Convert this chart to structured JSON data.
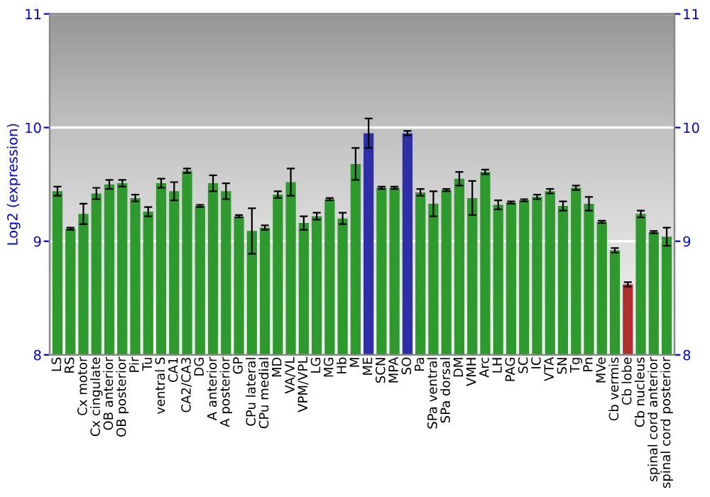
{
  "chart_data": {
    "type": "bar",
    "ylabel": "Log2 (expression)",
    "categories": [
      "LS",
      "RS",
      "Cx motor",
      "Cx cingulate",
      "OB anterior",
      "OB posterior",
      "Pir",
      "Tu",
      "ventral S",
      "CA1",
      "CA2/CA3",
      "DG",
      "A anterior",
      "A posterior",
      "GP",
      "CPu lateral",
      "CPu medial",
      "MD",
      "VA/VL",
      "VPM/VPL",
      "LG",
      "MG",
      "Hb",
      "M",
      "ME",
      "SCN",
      "MPA",
      "SO",
      "Pa",
      "SPa ventral",
      "SPa dorsal",
      "DM",
      "VMH",
      "Arc",
      "LH",
      "PAG",
      "SC",
      "IC",
      "VTA",
      "SN",
      "Tg",
      "Pn",
      "MVe",
      "Cb vermis",
      "Cb lobe",
      "Cb nucleus",
      "spinal cord anterior",
      "spinal cord posterior"
    ],
    "values": [
      9.44,
      9.11,
      9.24,
      9.42,
      9.5,
      9.51,
      9.38,
      9.26,
      9.51,
      9.44,
      9.62,
      9.31,
      9.51,
      9.44,
      9.22,
      9.09,
      9.12,
      9.41,
      9.52,
      9.16,
      9.22,
      9.37,
      9.2,
      9.68,
      9.95,
      9.47,
      9.47,
      9.95,
      9.43,
      9.33,
      9.45,
      9.55,
      9.38,
      9.61,
      9.32,
      9.34,
      9.36,
      9.39,
      9.44,
      9.31,
      9.47,
      9.33,
      9.17,
      8.92,
      8.62,
      9.24,
      9.08,
      9.04
    ],
    "errors": [
      0.04,
      0.01,
      0.09,
      0.05,
      0.04,
      0.03,
      0.03,
      0.04,
      0.04,
      0.08,
      0.02,
      0.01,
      0.07,
      0.07,
      0.01,
      0.2,
      0.02,
      0.03,
      0.12,
      0.06,
      0.03,
      0.01,
      0.05,
      0.14,
      0.13,
      0.01,
      0.01,
      0.02,
      0.03,
      0.11,
      0.01,
      0.06,
      0.15,
      0.02,
      0.04,
      0.01,
      0.01,
      0.02,
      0.02,
      0.04,
      0.02,
      0.06,
      0.01,
      0.02,
      0.02,
      0.03,
      0.01,
      0.08
    ],
    "colors": [
      "#2e9a2e",
      "#2e9a2e",
      "#2e9a2e",
      "#2e9a2e",
      "#2e9a2e",
      "#2e9a2e",
      "#2e9a2e",
      "#2e9a2e",
      "#2e9a2e",
      "#2e9a2e",
      "#2e9a2e",
      "#2e9a2e",
      "#2e9a2e",
      "#2e9a2e",
      "#2e9a2e",
      "#2e9a2e",
      "#2e9a2e",
      "#2e9a2e",
      "#2e9a2e",
      "#2e9a2e",
      "#2e9a2e",
      "#2e9a2e",
      "#2e9a2e",
      "#2e9a2e",
      "#2e2ea6",
      "#2e9a2e",
      "#2e9a2e",
      "#2e2ea6",
      "#2e9a2e",
      "#2e9a2e",
      "#2e9a2e",
      "#2e9a2e",
      "#2e9a2e",
      "#2e9a2e",
      "#2e9a2e",
      "#2e9a2e",
      "#2e9a2e",
      "#2e9a2e",
      "#2e9a2e",
      "#2e9a2e",
      "#2e9a2e",
      "#2e9a2e",
      "#2e9a2e",
      "#2e9a2e",
      "#b03030",
      "#2e9a2e",
      "#2e9a2e",
      "#2e9a2e"
    ],
    "ylim": [
      8,
      11
    ],
    "yticks": [
      8,
      9,
      10,
      11
    ],
    "y2lim": [
      8,
      11
    ],
    "y2ticks": [
      8,
      9,
      10,
      11
    ],
    "grid": "y"
  }
}
